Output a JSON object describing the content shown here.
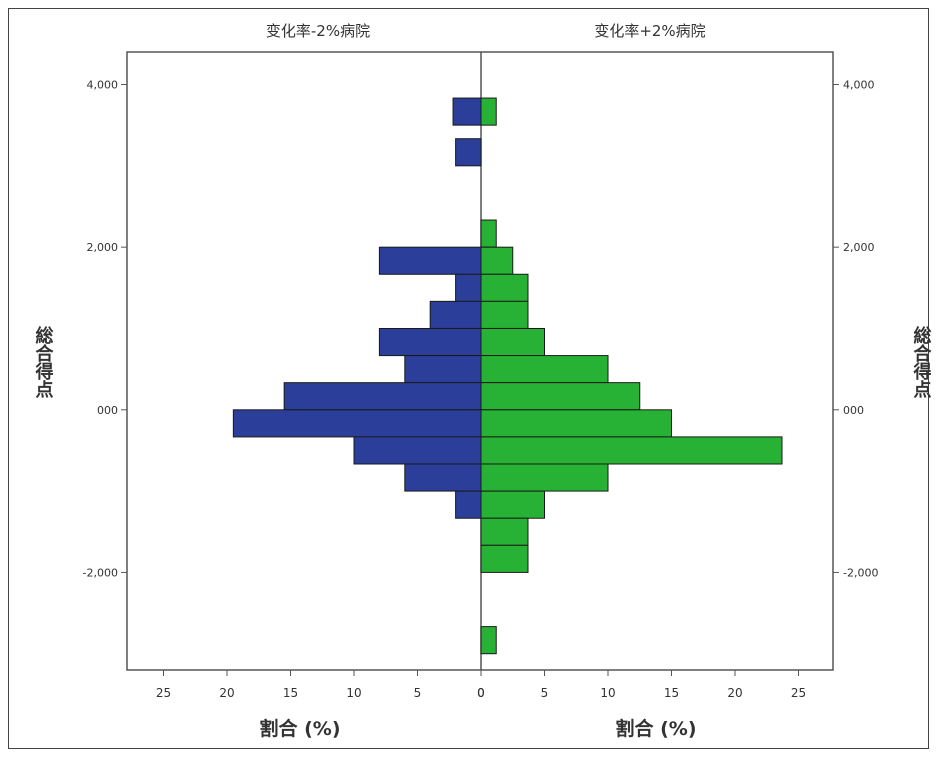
{
  "chart_data": {
    "type": "bar",
    "orientation": "horizontal-population-pyramid",
    "panels": [
      {
        "title": "变化率-2%病院",
        "color": "#2b3f9a",
        "direction": "left",
        "xlabel": "割合 (%)",
        "xticks": [
          "25",
          "20",
          "15",
          "10",
          "5",
          "0"
        ]
      },
      {
        "title": "变化率+2%病院",
        "color": "#27b235",
        "direction": "right",
        "xlabel": "割合 (%)",
        "xticks": [
          "0",
          "5",
          "10",
          "15",
          "20",
          "25"
        ]
      }
    ],
    "ylabel_left": "総合得点",
    "ylabel_right": "総合得点",
    "yticks": [
      "4,000",
      "2,000",
      "000",
      "-2,000"
    ],
    "ytick_values": [
      4000,
      2000,
      0,
      -2000
    ],
    "ylim": [
      -3200,
      4400
    ],
    "xlim": [
      0,
      28
    ],
    "grid": false,
    "bin_width": 333.3,
    "series": [
      {
        "name": "变化率-2%病院",
        "bins": [
          {
            "y": 3667,
            "value": 2.2
          },
          {
            "y": 3167,
            "value": 2.0
          },
          {
            "y": 1833,
            "value": 8.0
          },
          {
            "y": 1500,
            "value": 2.0
          },
          {
            "y": 1167,
            "value": 4.0
          },
          {
            "y": 833,
            "value": 8.0
          },
          {
            "y": 500,
            "value": 6.0
          },
          {
            "y": 167,
            "value": 15.5
          },
          {
            "y": -167,
            "value": 19.5
          },
          {
            "y": -500,
            "value": 10.0
          },
          {
            "y": -833,
            "value": 6.0
          },
          {
            "y": -1167,
            "value": 2.0
          }
        ]
      },
      {
        "name": "变化率+2%病院",
        "bins": [
          {
            "y": 3667,
            "value": 1.2
          },
          {
            "y": 2167,
            "value": 1.2
          },
          {
            "y": 1833,
            "value": 2.5
          },
          {
            "y": 1500,
            "value": 3.7
          },
          {
            "y": 1167,
            "value": 3.7
          },
          {
            "y": 833,
            "value": 5.0
          },
          {
            "y": 500,
            "value": 10.0
          },
          {
            "y": 167,
            "value": 12.5
          },
          {
            "y": -167,
            "value": 15.0
          },
          {
            "y": -500,
            "value": 23.7
          },
          {
            "y": -833,
            "value": 10.0
          },
          {
            "y": -1167,
            "value": 5.0
          },
          {
            "y": -1500,
            "value": 3.7
          },
          {
            "y": -1833,
            "value": 3.7
          },
          {
            "y": -2833,
            "value": 1.2
          }
        ]
      }
    ]
  }
}
